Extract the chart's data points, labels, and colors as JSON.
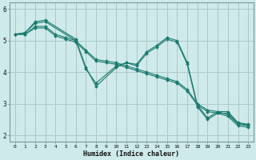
{
  "xlabel": "Humidex (Indice chaleur)",
  "xlim": [
    -0.5,
    23.5
  ],
  "ylim": [
    1.8,
    6.2
  ],
  "yticks": [
    2,
    3,
    4,
    5,
    6
  ],
  "xticks": [
    0,
    1,
    2,
    3,
    4,
    5,
    6,
    7,
    8,
    9,
    10,
    11,
    12,
    13,
    14,
    15,
    16,
    17,
    18,
    19,
    20,
    21,
    22,
    23
  ],
  "bg_color": "#ceeaea",
  "grid_color_major": "#aac8c8",
  "grid_color_minor": "#bcdcdc",
  "line_color": "#1a7a6e",
  "lines": [
    {
      "x": [
        0,
        1,
        2,
        3,
        4,
        5,
        6,
        7,
        8,
        9,
        10,
        11,
        12,
        13,
        14,
        15,
        16,
        17,
        18,
        19,
        20,
        21,
        22,
        23
      ],
      "y": [
        5.2,
        5.2,
        5.45,
        5.45,
        5.2,
        5.1,
        5.0,
        4.7,
        4.4,
        4.35,
        4.3,
        4.2,
        4.1,
        4.0,
        3.9,
        3.8,
        3.7,
        3.45,
        3.0,
        2.8,
        2.75,
        2.65,
        2.35,
        2.3
      ]
    },
    {
      "x": [
        0,
        1,
        2,
        3,
        4,
        5,
        6,
        7,
        8,
        9,
        10,
        11,
        12,
        13,
        14,
        15,
        16,
        17,
        18,
        19,
        20,
        21,
        22,
        23
      ],
      "y": [
        5.2,
        5.2,
        5.4,
        5.4,
        5.15,
        5.05,
        4.95,
        4.65,
        4.35,
        4.3,
        4.25,
        4.15,
        4.05,
        3.95,
        3.85,
        3.75,
        3.65,
        3.4,
        2.95,
        2.75,
        2.7,
        2.6,
        2.3,
        2.25
      ]
    },
    {
      "x": [
        0,
        1,
        2,
        3,
        6,
        7,
        8,
        10,
        11,
        12,
        13,
        14,
        15,
        16,
        17,
        18,
        19,
        20,
        21,
        22,
        23
      ],
      "y": [
        5.2,
        5.25,
        5.6,
        5.65,
        5.05,
        4.15,
        3.55,
        4.15,
        4.3,
        4.25,
        4.65,
        4.85,
        5.1,
        5.0,
        4.3,
        2.95,
        2.55,
        2.75,
        2.75,
        2.4,
        2.35
      ]
    },
    {
      "x": [
        0,
        1,
        2,
        3,
        6,
        7,
        8,
        10,
        11,
        12,
        13,
        14,
        15,
        16,
        17,
        18,
        19,
        20,
        21,
        22,
        23
      ],
      "y": [
        5.2,
        5.25,
        5.55,
        5.6,
        5.0,
        4.1,
        3.65,
        4.2,
        4.3,
        4.2,
        4.6,
        4.8,
        5.05,
        4.95,
        4.25,
        2.9,
        2.5,
        2.7,
        2.7,
        2.38,
        2.32
      ]
    }
  ]
}
